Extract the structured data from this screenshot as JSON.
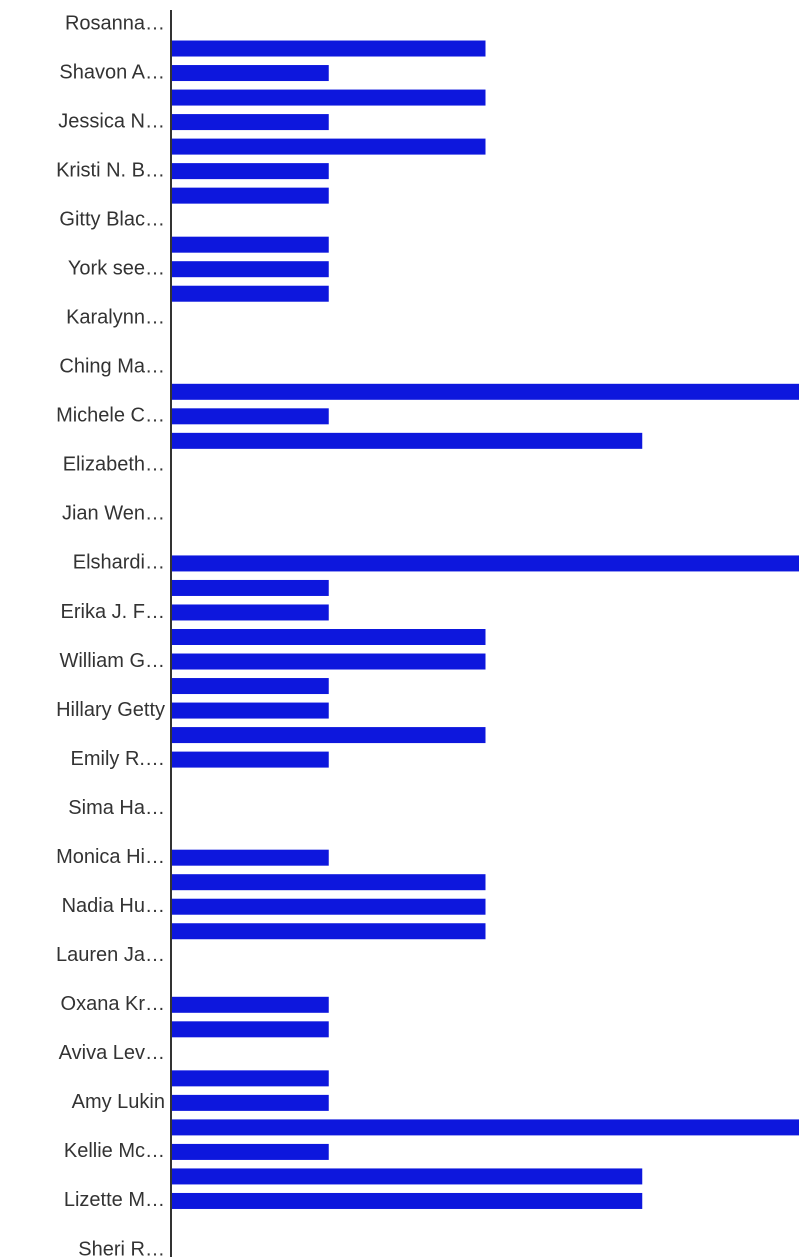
{
  "chart_data": {
    "type": "bar",
    "orientation": "horizontal",
    "color": "#0d17dd",
    "xlim": [
      0,
      4
    ],
    "categories": [
      "Rosanna…",
      null,
      "Shavon A…",
      null,
      "Jessica N…",
      null,
      "Kristi N. B…",
      null,
      "Gitty Blac…",
      null,
      "York see…",
      null,
      "Karalynn…",
      null,
      "Ching Ma…",
      null,
      "Michele C…",
      null,
      "Elizabeth…",
      null,
      "Jian Wen…",
      null,
      "Elshardi…",
      null,
      "Erika J. F…",
      null,
      "William G…",
      null,
      "Hillary Getty",
      null,
      "Emily R.…",
      null,
      "Sima Ha…",
      null,
      "Monica Hi…",
      null,
      "Nadia Hu…",
      null,
      "Lauren Ja…",
      null,
      "Oxana Kr…",
      null,
      "Aviva Lev…",
      null,
      "Amy Lukin",
      null,
      "Kellie Mc…",
      null,
      "Lizette M…",
      null,
      "Sheri R…"
    ],
    "values": [
      0,
      2,
      1,
      2,
      1,
      2,
      1,
      1,
      0,
      1,
      1,
      1,
      0,
      0,
      0,
      4,
      1,
      3,
      0,
      0,
      0,
      0,
      4,
      1,
      1,
      2,
      2,
      1,
      1,
      2,
      1,
      0,
      0,
      0,
      1,
      2,
      2,
      2,
      0,
      0,
      1,
      1,
      0,
      1,
      1,
      4,
      1,
      3,
      3,
      0,
      0
    ]
  }
}
